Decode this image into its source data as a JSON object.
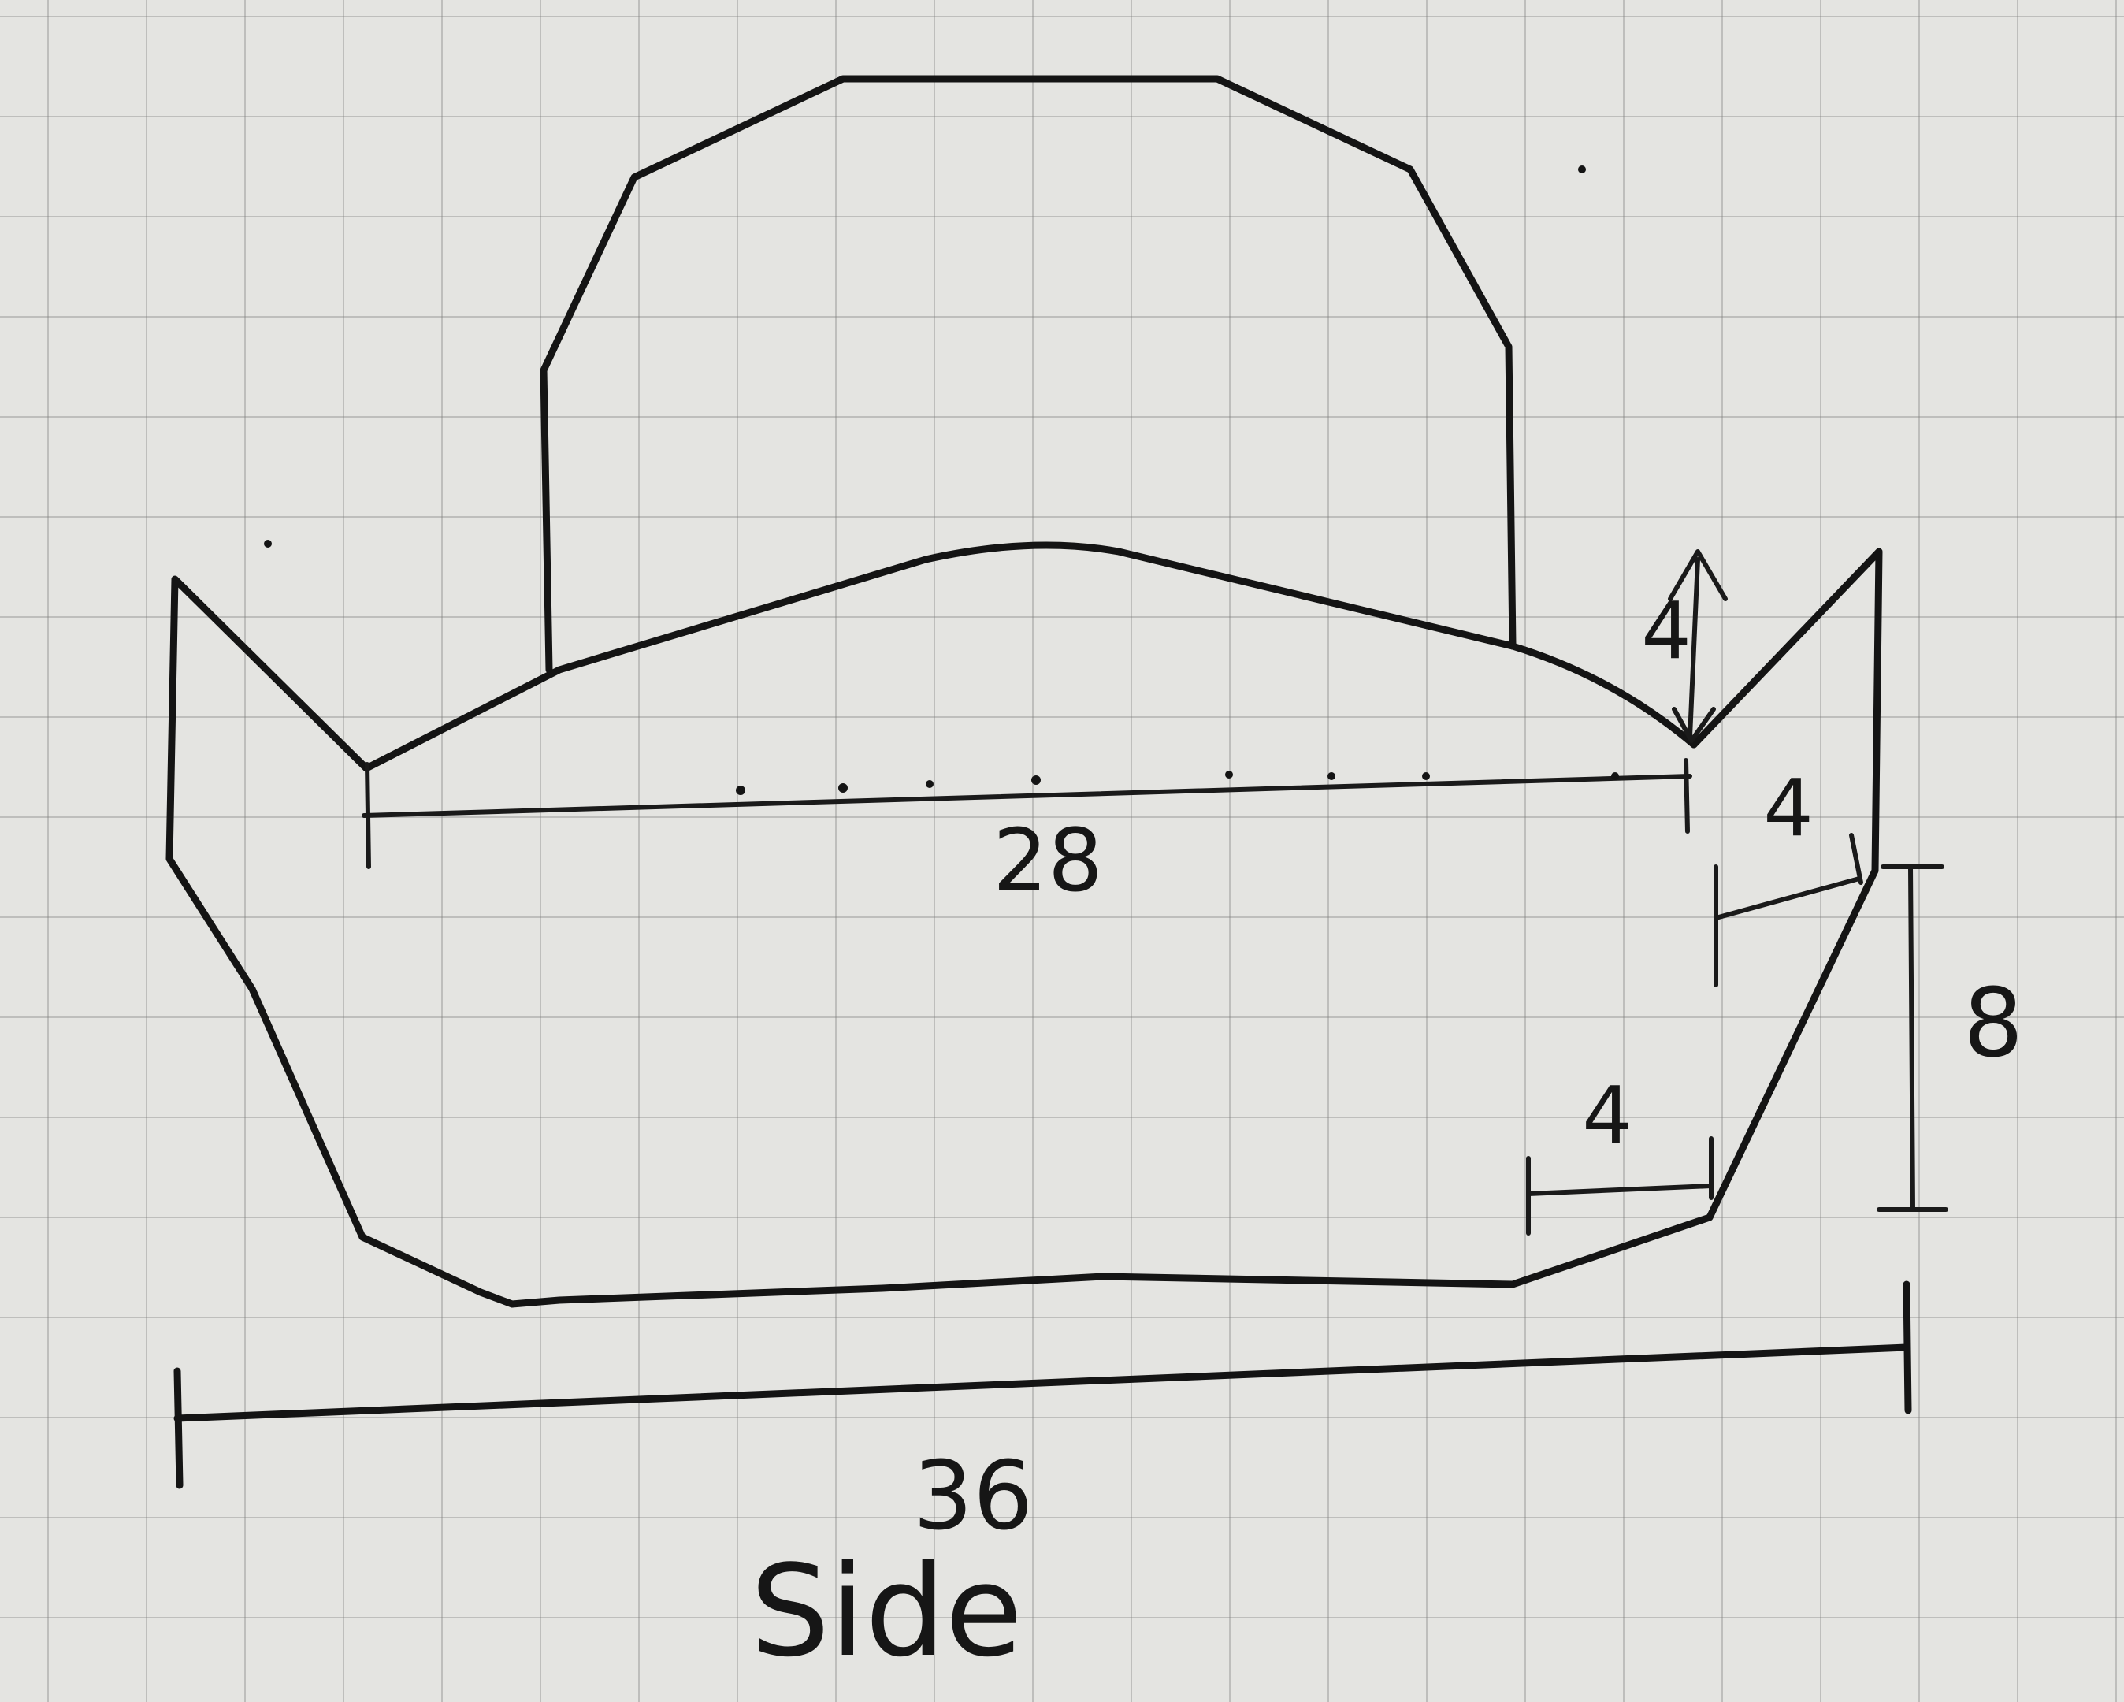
{
  "diagram": {
    "labels": {
      "inner_width": "28",
      "total_width": "36",
      "notch_depth": "4",
      "upper_offset": "4",
      "lower_offset": "4",
      "side_height": "8",
      "caption": "Side"
    }
  }
}
